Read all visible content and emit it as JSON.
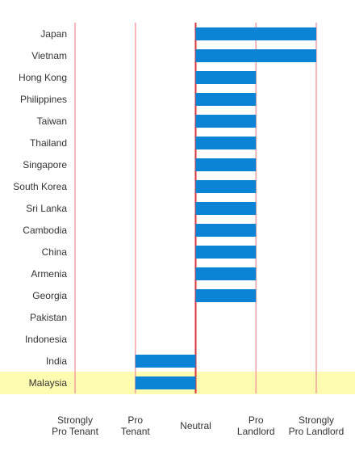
{
  "chart_data": {
    "type": "bar",
    "orientation": "horizontal",
    "categories": [
      "Japan",
      "Vietnam",
      "Hong Kong",
      "Philippines",
      "Taiwan",
      "Thailand",
      "Singapore",
      "South Korea",
      "Sri Lanka",
      "Cambodia",
      "China",
      "Armenia",
      "Georgia",
      "Pakistan",
      "Indonesia",
      "India",
      "Malaysia"
    ],
    "values": [
      2,
      2,
      1,
      1,
      1,
      1,
      1,
      1,
      1,
      1,
      1,
      1,
      1,
      0,
      0,
      -1,
      -1
    ],
    "highlighted_category": "Malaysia",
    "xlim": [
      -2,
      2
    ],
    "x_tick_values": [
      -2,
      -1,
      0,
      1,
      2
    ],
    "x_tick_labels": [
      [
        "Strongly",
        "Pro Tenant"
      ],
      [
        "Pro",
        "Tenant"
      ],
      [
        "Neutral"
      ],
      [
        "Pro",
        "Landlord"
      ],
      [
        "Strongly",
        "Pro Landlord"
      ]
    ],
    "bar_color": "#0b84d6",
    "gridline_color": "#f2a0a6",
    "zero_line_color": "#d9363e",
    "highlight_color": "#fdfcb0",
    "grid": true,
    "legend": "none"
  }
}
